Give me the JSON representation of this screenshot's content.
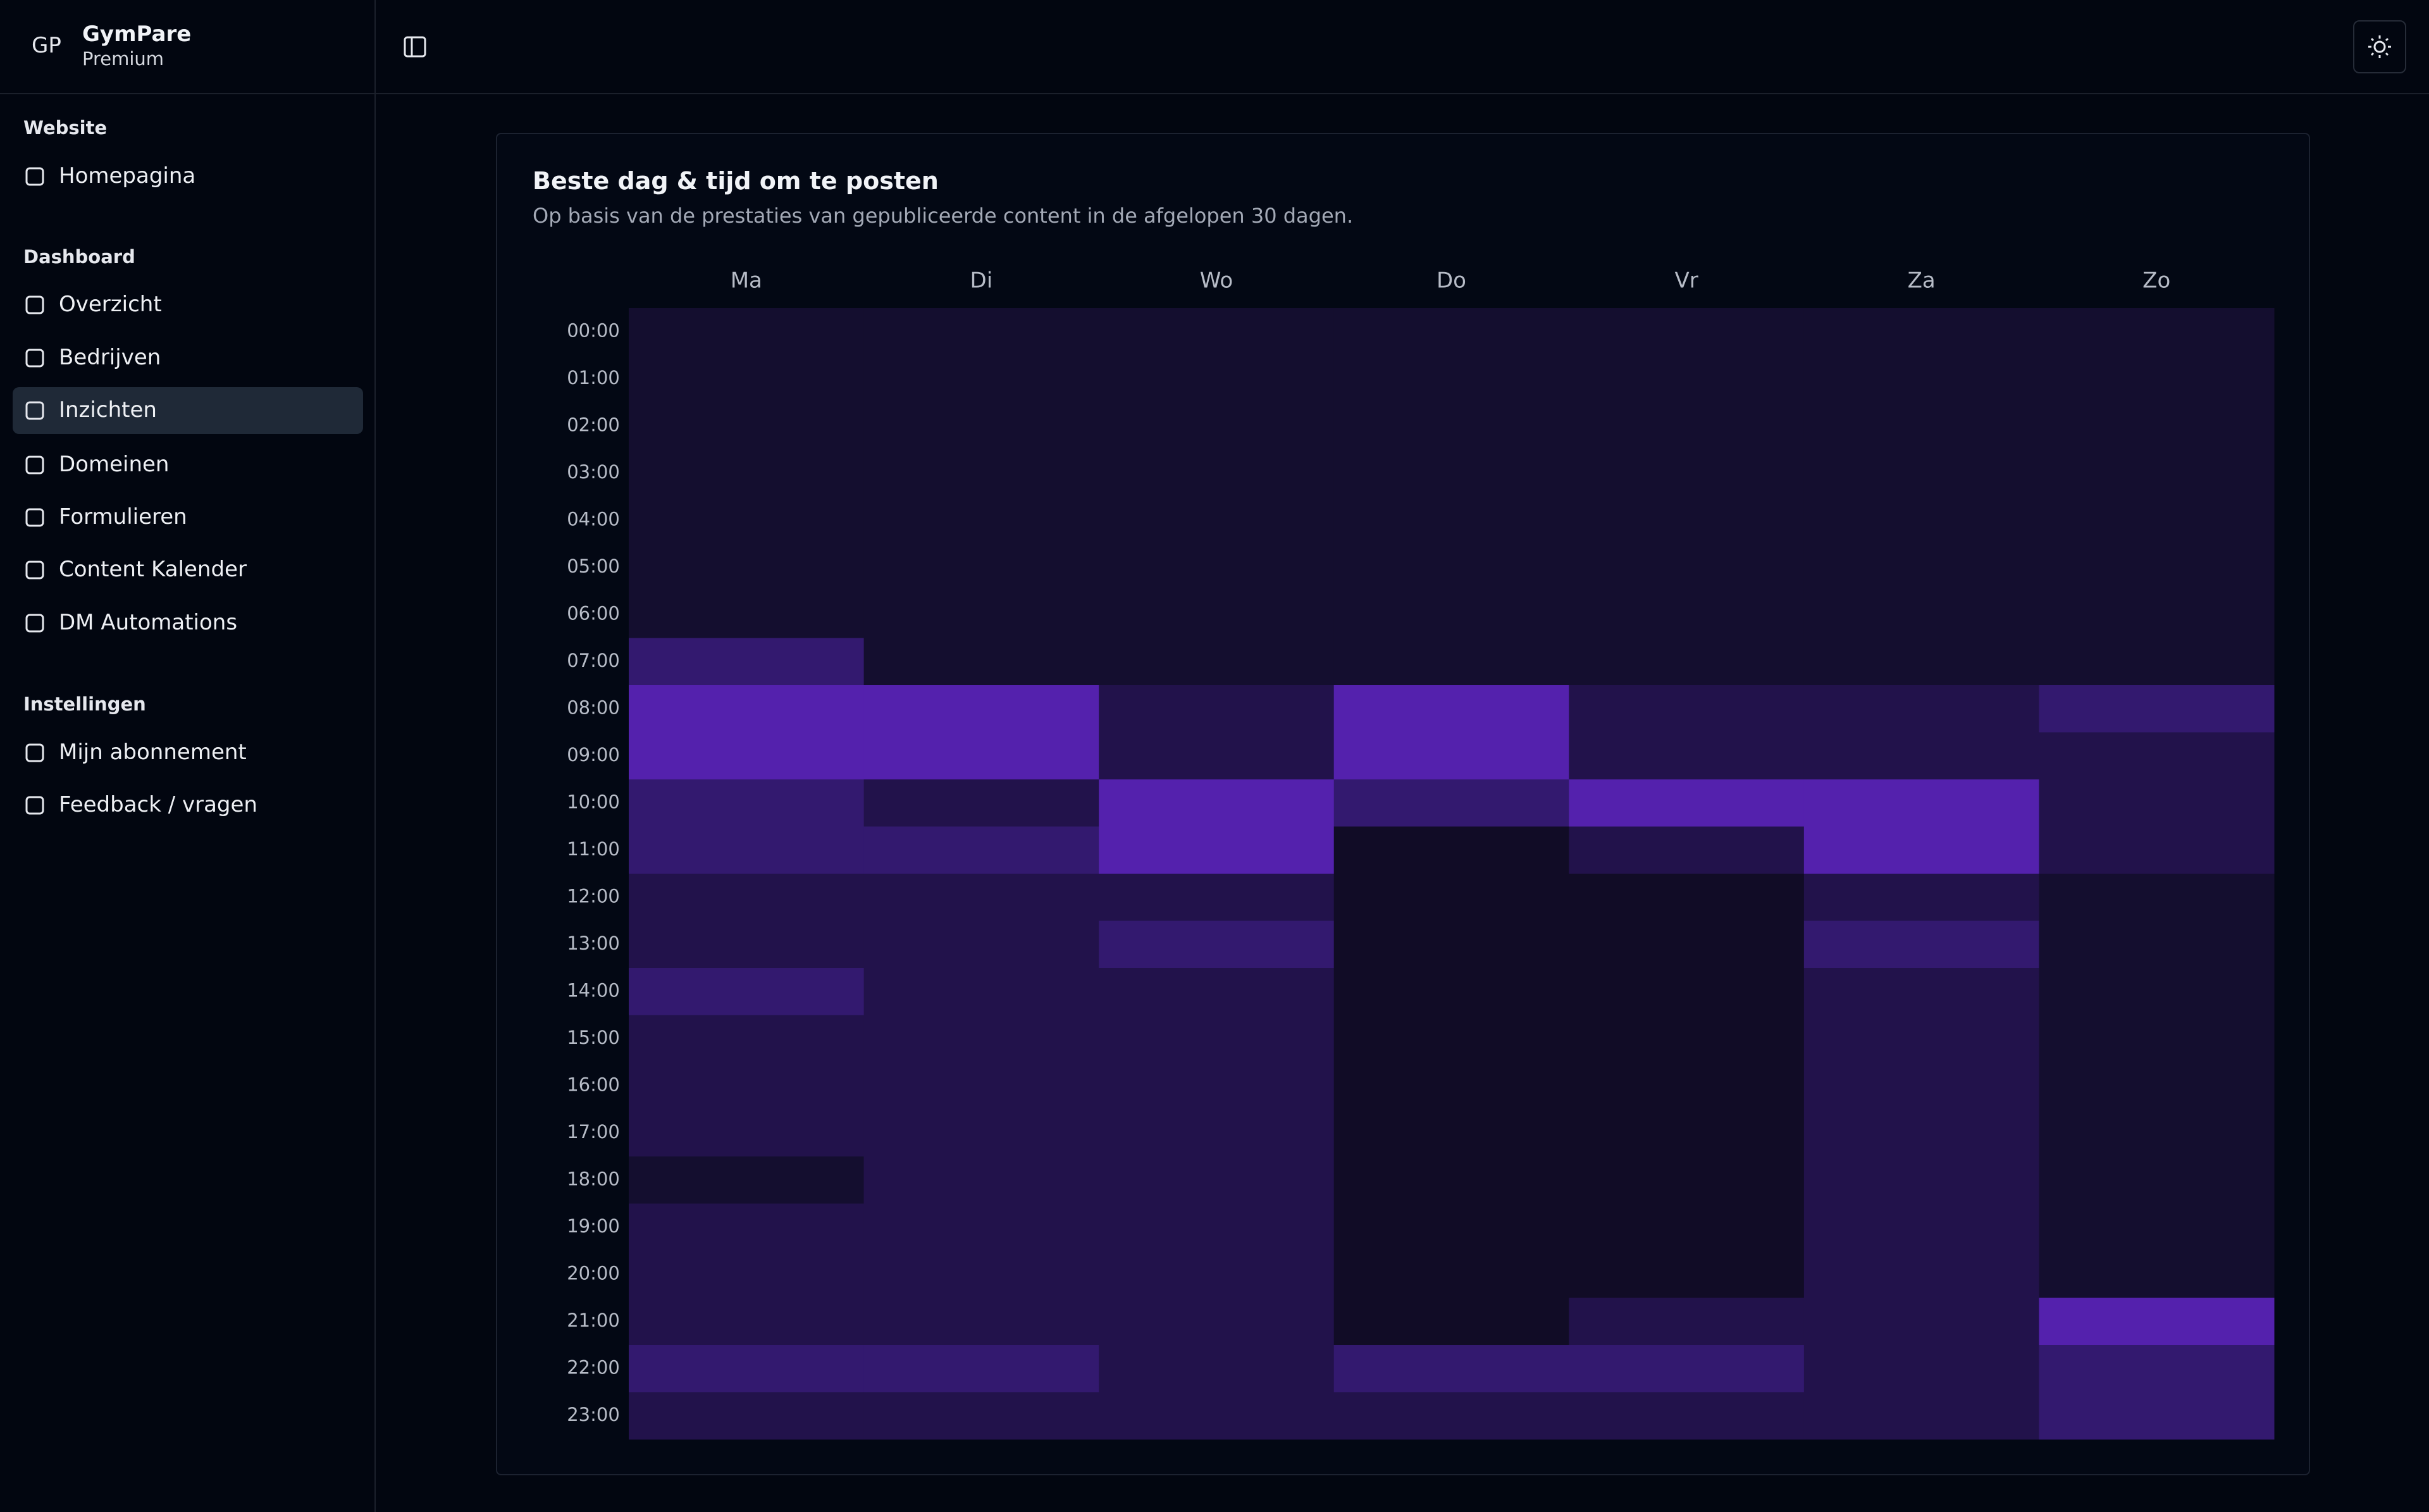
{
  "header": {
    "avatar": "GP",
    "name": "GymPare",
    "plan": "Premium"
  },
  "sidebar": {
    "sections": [
      {
        "title": "Website",
        "items": [
          {
            "label": "Homepagina"
          }
        ]
      },
      {
        "title": "Dashboard",
        "items": [
          {
            "label": "Overzicht"
          },
          {
            "label": "Bedrijven"
          },
          {
            "label": "Inzichten",
            "active": true
          },
          {
            "label": "Domeinen"
          },
          {
            "label": "Formulieren"
          },
          {
            "label": "Content Kalender"
          },
          {
            "label": "DM Automations"
          }
        ]
      },
      {
        "title": "Instellingen",
        "items": [
          {
            "label": "Mijn abonnement"
          },
          {
            "label": "Feedback / vragen"
          }
        ]
      }
    ]
  },
  "card": {
    "title": "Beste dag & tijd om te posten",
    "subtitle": "Op basis van de prestaties van gepubliceerde content in de afgelopen 30 dagen."
  },
  "chart_data": {
    "type": "heatmap",
    "x": [
      "Ma",
      "Di",
      "Wo",
      "Do",
      "Vr",
      "Za",
      "Zo"
    ],
    "y": [
      "00:00",
      "01:00",
      "02:00",
      "03:00",
      "04:00",
      "05:00",
      "06:00",
      "07:00",
      "08:00",
      "09:00",
      "10:00",
      "11:00",
      "12:00",
      "13:00",
      "14:00",
      "15:00",
      "16:00",
      "17:00",
      "18:00",
      "19:00",
      "20:00",
      "21:00",
      "22:00",
      "23:00"
    ],
    "values": [
      [
        1,
        1,
        1,
        1,
        1,
        1,
        1
      ],
      [
        1,
        1,
        1,
        1,
        1,
        1,
        1
      ],
      [
        1,
        1,
        1,
        1,
        1,
        1,
        1
      ],
      [
        1,
        1,
        1,
        1,
        1,
        1,
        1
      ],
      [
        1,
        1,
        1,
        1,
        1,
        1,
        1
      ],
      [
        1,
        1,
        1,
        1,
        1,
        1,
        1
      ],
      [
        1,
        1,
        1,
        1,
        1,
        1,
        1
      ],
      [
        3,
        1,
        1,
        1,
        1,
        1,
        1
      ],
      [
        4,
        4,
        2,
        4,
        2,
        2,
        3
      ],
      [
        4,
        4,
        2,
        4,
        2,
        2,
        2
      ],
      [
        3,
        2,
        4,
        3,
        4,
        4,
        2
      ],
      [
        3,
        3,
        4,
        0,
        2,
        4,
        2
      ],
      [
        2,
        2,
        2,
        0,
        0,
        2,
        1
      ],
      [
        2,
        2,
        3,
        0,
        0,
        3,
        1
      ],
      [
        3,
        2,
        2,
        0,
        0,
        2,
        1
      ],
      [
        2,
        2,
        2,
        0,
        0,
        2,
        1
      ],
      [
        2,
        2,
        2,
        0,
        0,
        2,
        1
      ],
      [
        2,
        2,
        2,
        0,
        0,
        2,
        1
      ],
      [
        1,
        2,
        2,
        0,
        0,
        2,
        1
      ],
      [
        2,
        2,
        2,
        0,
        0,
        2,
        1
      ],
      [
        2,
        2,
        2,
        0,
        0,
        2,
        1
      ],
      [
        2,
        2,
        2,
        0,
        2,
        2,
        4
      ],
      [
        3,
        3,
        2,
        3,
        3,
        2,
        3
      ],
      [
        2,
        2,
        2,
        2,
        2,
        2,
        3
      ]
    ],
    "colorscale": [
      "#110c26",
      "#140e2f",
      "#22124b",
      "#33196f",
      "#5421ad"
    ]
  }
}
